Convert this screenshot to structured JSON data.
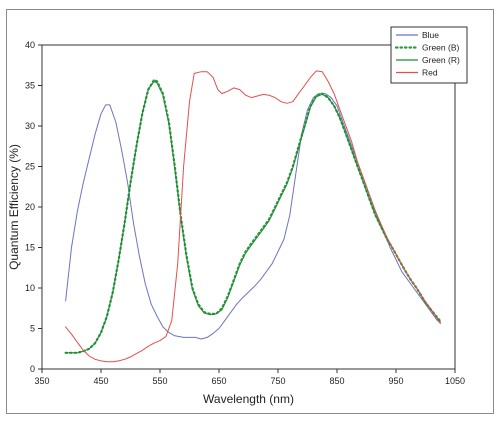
{
  "chart_data": {
    "type": "line",
    "title": "",
    "xlabel": "Wavelength (nm)",
    "ylabel": "Quantum Efficiency (%)",
    "xlim": [
      350,
      1050
    ],
    "ylim": [
      0,
      40
    ],
    "xticks": [
      350,
      450,
      550,
      650,
      750,
      850,
      950,
      1050
    ],
    "yticks": [
      0,
      5,
      10,
      15,
      20,
      25,
      30,
      35,
      40
    ],
    "grid": false,
    "legend_position": "top-right",
    "series": [
      {
        "name": "Blue",
        "color": "#6b74c4",
        "style": "solid",
        "points": [
          [
            390,
            8.4
          ],
          [
            400,
            15
          ],
          [
            410,
            19.5
          ],
          [
            420,
            23
          ],
          [
            430,
            26
          ],
          [
            440,
            29
          ],
          [
            450,
            31.5
          ],
          [
            458,
            32.6
          ],
          [
            465,
            32.6
          ],
          [
            475,
            30.5
          ],
          [
            485,
            27
          ],
          [
            495,
            23
          ],
          [
            505,
            18
          ],
          [
            515,
            14
          ],
          [
            525,
            10.5
          ],
          [
            535,
            8
          ],
          [
            545,
            6.5
          ],
          [
            555,
            5.2
          ],
          [
            565,
            4.5
          ],
          [
            575,
            4.1
          ],
          [
            590,
            3.9
          ],
          [
            610,
            3.9
          ],
          [
            620,
            3.7
          ],
          [
            630,
            3.9
          ],
          [
            640,
            4.4
          ],
          [
            650,
            5
          ],
          [
            660,
            6
          ],
          [
            670,
            7
          ],
          [
            680,
            8
          ],
          [
            690,
            8.8
          ],
          [
            700,
            9.5
          ],
          [
            710,
            10.2
          ],
          [
            720,
            11
          ],
          [
            730,
            12
          ],
          [
            740,
            13
          ],
          [
            750,
            14.5
          ],
          [
            760,
            16
          ],
          [
            770,
            19
          ],
          [
            780,
            24
          ],
          [
            790,
            29
          ],
          [
            800,
            32
          ],
          [
            810,
            33.5
          ],
          [
            820,
            34
          ],
          [
            830,
            34
          ],
          [
            840,
            33.5
          ],
          [
            850,
            32.5
          ],
          [
            860,
            30.5
          ],
          [
            870,
            28.5
          ],
          [
            880,
            26.5
          ],
          [
            890,
            24.5
          ],
          [
            900,
            22.5
          ],
          [
            910,
            20.5
          ],
          [
            920,
            18.5
          ],
          [
            930,
            16.8
          ],
          [
            940,
            15
          ],
          [
            950,
            13.5
          ],
          [
            960,
            12
          ],
          [
            980,
            10
          ],
          [
            1000,
            8
          ],
          [
            1020,
            6
          ],
          [
            1025,
            5.7
          ]
        ]
      },
      {
        "name": "Green (B)",
        "color": "#2e9a3e",
        "style": "dotted",
        "points": [
          [
            390,
            2
          ],
          [
            400,
            2
          ],
          [
            410,
            2
          ],
          [
            420,
            2.2
          ],
          [
            430,
            2.5
          ],
          [
            440,
            3.2
          ],
          [
            450,
            4.5
          ],
          [
            460,
            6.5
          ],
          [
            470,
            9.5
          ],
          [
            480,
            13.5
          ],
          [
            490,
            18
          ],
          [
            500,
            23
          ],
          [
            510,
            27.5
          ],
          [
            520,
            31.5
          ],
          [
            530,
            34.5
          ],
          [
            540,
            35.7
          ],
          [
            545,
            35.5
          ],
          [
            555,
            34
          ],
          [
            565,
            30.5
          ],
          [
            575,
            25
          ],
          [
            585,
            19
          ],
          [
            595,
            14
          ],
          [
            605,
            10
          ],
          [
            615,
            8
          ],
          [
            625,
            7
          ],
          [
            635,
            6.8
          ],
          [
            645,
            6.8
          ],
          [
            655,
            7.5
          ],
          [
            665,
            9
          ],
          [
            675,
            11
          ],
          [
            685,
            13
          ],
          [
            695,
            14.5
          ],
          [
            705,
            15.5
          ],
          [
            715,
            16.5
          ],
          [
            725,
            17.5
          ],
          [
            735,
            18.5
          ],
          [
            745,
            20
          ],
          [
            755,
            21.5
          ],
          [
            765,
            23
          ],
          [
            775,
            25
          ],
          [
            785,
            27.5
          ],
          [
            795,
            30
          ],
          [
            805,
            32.5
          ],
          [
            815,
            33.8
          ],
          [
            825,
            34
          ],
          [
            835,
            33.5
          ],
          [
            845,
            32.5
          ],
          [
            855,
            31
          ],
          [
            865,
            29
          ],
          [
            875,
            27
          ],
          [
            885,
            25
          ],
          [
            895,
            23
          ],
          [
            905,
            21
          ],
          [
            915,
            19
          ],
          [
            925,
            17.5
          ],
          [
            935,
            16
          ],
          [
            945,
            14.8
          ],
          [
            955,
            13.5
          ],
          [
            965,
            12.2
          ],
          [
            975,
            11
          ],
          [
            985,
            10
          ],
          [
            1000,
            8.2
          ],
          [
            1015,
            6.8
          ],
          [
            1025,
            5.9
          ]
        ]
      },
      {
        "name": "Green (R)",
        "color": "#1f8a35",
        "style": "solid",
        "points": [
          [
            390,
            2
          ],
          [
            400,
            2
          ],
          [
            410,
            2
          ],
          [
            420,
            2.2
          ],
          [
            430,
            2.5
          ],
          [
            440,
            3.2
          ],
          [
            450,
            4.5
          ],
          [
            460,
            6.5
          ],
          [
            470,
            9.5
          ],
          [
            480,
            13.5
          ],
          [
            490,
            18
          ],
          [
            500,
            23
          ],
          [
            510,
            27.5
          ],
          [
            520,
            31.5
          ],
          [
            530,
            34.5
          ],
          [
            540,
            35.5
          ],
          [
            545,
            35.3
          ],
          [
            555,
            33.8
          ],
          [
            565,
            30.3
          ],
          [
            575,
            24.8
          ],
          [
            585,
            18.8
          ],
          [
            595,
            13.8
          ],
          [
            605,
            9.8
          ],
          [
            615,
            7.8
          ],
          [
            625,
            6.9
          ],
          [
            635,
            6.7
          ],
          [
            645,
            6.8
          ],
          [
            655,
            7.3
          ],
          [
            665,
            8.8
          ],
          [
            675,
            10.8
          ],
          [
            685,
            12.8
          ],
          [
            695,
            14.3
          ],
          [
            705,
            15.3
          ],
          [
            715,
            16.3
          ],
          [
            725,
            17.3
          ],
          [
            735,
            18.3
          ],
          [
            745,
            19.8
          ],
          [
            755,
            21.3
          ],
          [
            765,
            22.8
          ],
          [
            775,
            24.8
          ],
          [
            785,
            27.3
          ],
          [
            795,
            29.8
          ],
          [
            805,
            32.3
          ],
          [
            815,
            33.6
          ],
          [
            825,
            33.9
          ],
          [
            835,
            33.5
          ],
          [
            845,
            32.5
          ],
          [
            855,
            31
          ],
          [
            865,
            29
          ],
          [
            875,
            27
          ],
          [
            885,
            25
          ],
          [
            895,
            23
          ],
          [
            905,
            21
          ],
          [
            915,
            19
          ],
          [
            925,
            17.5
          ],
          [
            935,
            16
          ],
          [
            945,
            14.8
          ],
          [
            955,
            13.5
          ],
          [
            965,
            12.2
          ],
          [
            975,
            11
          ],
          [
            985,
            10
          ],
          [
            1000,
            8.2
          ],
          [
            1015,
            6.8
          ],
          [
            1025,
            5.8
          ]
        ]
      },
      {
        "name": "Red",
        "color": "#e2504c",
        "style": "solid",
        "points": [
          [
            390,
            5.2
          ],
          [
            400,
            4.3
          ],
          [
            410,
            3.3
          ],
          [
            420,
            2.3
          ],
          [
            430,
            1.6
          ],
          [
            440,
            1.2
          ],
          [
            450,
            1
          ],
          [
            460,
            0.9
          ],
          [
            470,
            0.9
          ],
          [
            480,
            1
          ],
          [
            490,
            1.2
          ],
          [
            500,
            1.5
          ],
          [
            510,
            1.9
          ],
          [
            520,
            2.3
          ],
          [
            530,
            2.8
          ],
          [
            540,
            3.2
          ],
          [
            550,
            3.5
          ],
          [
            560,
            4
          ],
          [
            570,
            6
          ],
          [
            580,
            13
          ],
          [
            590,
            25
          ],
          [
            600,
            33
          ],
          [
            608,
            36.5
          ],
          [
            620,
            36.7
          ],
          [
            630,
            36.7
          ],
          [
            640,
            36
          ],
          [
            648,
            34.5
          ],
          [
            655,
            34
          ],
          [
            665,
            34.3
          ],
          [
            675,
            34.7
          ],
          [
            685,
            34.5
          ],
          [
            695,
            33.8
          ],
          [
            705,
            33.5
          ],
          [
            715,
            33.7
          ],
          [
            725,
            33.9
          ],
          [
            735,
            33.8
          ],
          [
            745,
            33.5
          ],
          [
            755,
            33
          ],
          [
            765,
            32.8
          ],
          [
            775,
            33
          ],
          [
            785,
            34
          ],
          [
            795,
            35
          ],
          [
            805,
            36
          ],
          [
            815,
            36.8
          ],
          [
            825,
            36.7
          ],
          [
            835,
            35.5
          ],
          [
            845,
            34
          ],
          [
            855,
            32
          ],
          [
            865,
            30
          ],
          [
            875,
            28
          ],
          [
            885,
            25.5
          ],
          [
            895,
            23.5
          ],
          [
            905,
            21.5
          ],
          [
            915,
            19.5
          ],
          [
            925,
            17.8
          ],
          [
            935,
            16.2
          ],
          [
            945,
            14.8
          ],
          [
            955,
            13.5
          ],
          [
            965,
            12.2
          ],
          [
            975,
            11
          ],
          [
            985,
            10
          ],
          [
            1000,
            8.3
          ],
          [
            1015,
            6.8
          ],
          [
            1025,
            5.6
          ]
        ]
      }
    ]
  }
}
